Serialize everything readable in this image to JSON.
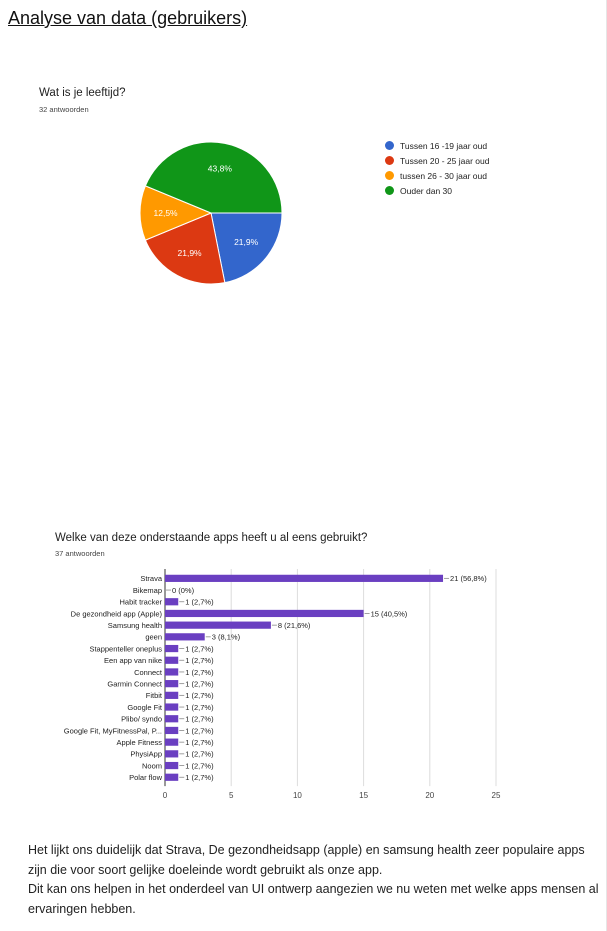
{
  "page_title": "Analyse van data (gebruikers)",
  "colors": {
    "bar": "#6a3fc1"
  },
  "chart_data": [
    {
      "type": "pie",
      "title": "Wat is je leeftijd?",
      "subtitle": "32 antwoorden",
      "legend_position": "right",
      "slices": [
        {
          "name": "Tussen 16 -19 jaar oud",
          "value": 21.9,
          "label": "21,9%",
          "color": "#3366cc"
        },
        {
          "name": "Tussen 20 - 25 jaar oud",
          "value": 21.9,
          "label": "21,9%",
          "color": "#dc3912"
        },
        {
          "name": "tussen 26 - 30 jaar oud",
          "value": 12.5,
          "label": "12,5%",
          "color": "#ff9900"
        },
        {
          "name": "Ouder dan 30",
          "value": 43.8,
          "label": "43,8%",
          "color": "#109618"
        }
      ]
    },
    {
      "type": "bar",
      "orientation": "horizontal",
      "title": "Welke van deze onderstaande apps heeft u al eens gebruikt?",
      "subtitle": "37 antwoorden",
      "xlim": [
        0,
        25
      ],
      "xticks": [
        0,
        5,
        10,
        15,
        20,
        25
      ],
      "grid": true,
      "categories": [
        "Strava",
        "Bikemap",
        "Habit tracker",
        "De gezondheid app (Apple)",
        "Samsung health",
        "geen",
        "Stappenteller oneplus",
        "Een app van nike",
        "Connect",
        "Garmin Connect",
        "Fitbit",
        "Google Fit",
        "Plibo/ syndo",
        "Google Fit, MyFitnessPal, P...",
        "Apple Fitness",
        "PhysiApp",
        "Noom",
        "Polar flow"
      ],
      "values": [
        21,
        0,
        1,
        15,
        8,
        3,
        1,
        1,
        1,
        1,
        1,
        1,
        1,
        1,
        1,
        1,
        1,
        1
      ],
      "labels": [
        "21 (56,8%)",
        "0 (0%)",
        "1 (2,7%)",
        "15 (40,5%)",
        "8 (21,6%)",
        "3 (8,1%)",
        "1 (2,7%)",
        "1 (2,7%)",
        "1 (2,7%)",
        "1 (2,7%)",
        "1 (2,7%)",
        "1 (2,7%)",
        "1 (2,7%)",
        "1 (2,7%)",
        "1 (2,7%)",
        "1 (2,7%)",
        "1 (2,7%)",
        "1 (2,7%)"
      ]
    }
  ],
  "conclusion": [
    "Het lijkt ons duidelijk dat Strava, De gezondheidsapp (apple) en samsung health zeer populaire apps zijn die voor soort gelijke doeleinde wordt gebruikt als onze app.",
    "Dit kan ons helpen in het onderdeel van UI ontwerp aangezien we nu weten met welke apps  mensen al ervaringen hebben."
  ]
}
